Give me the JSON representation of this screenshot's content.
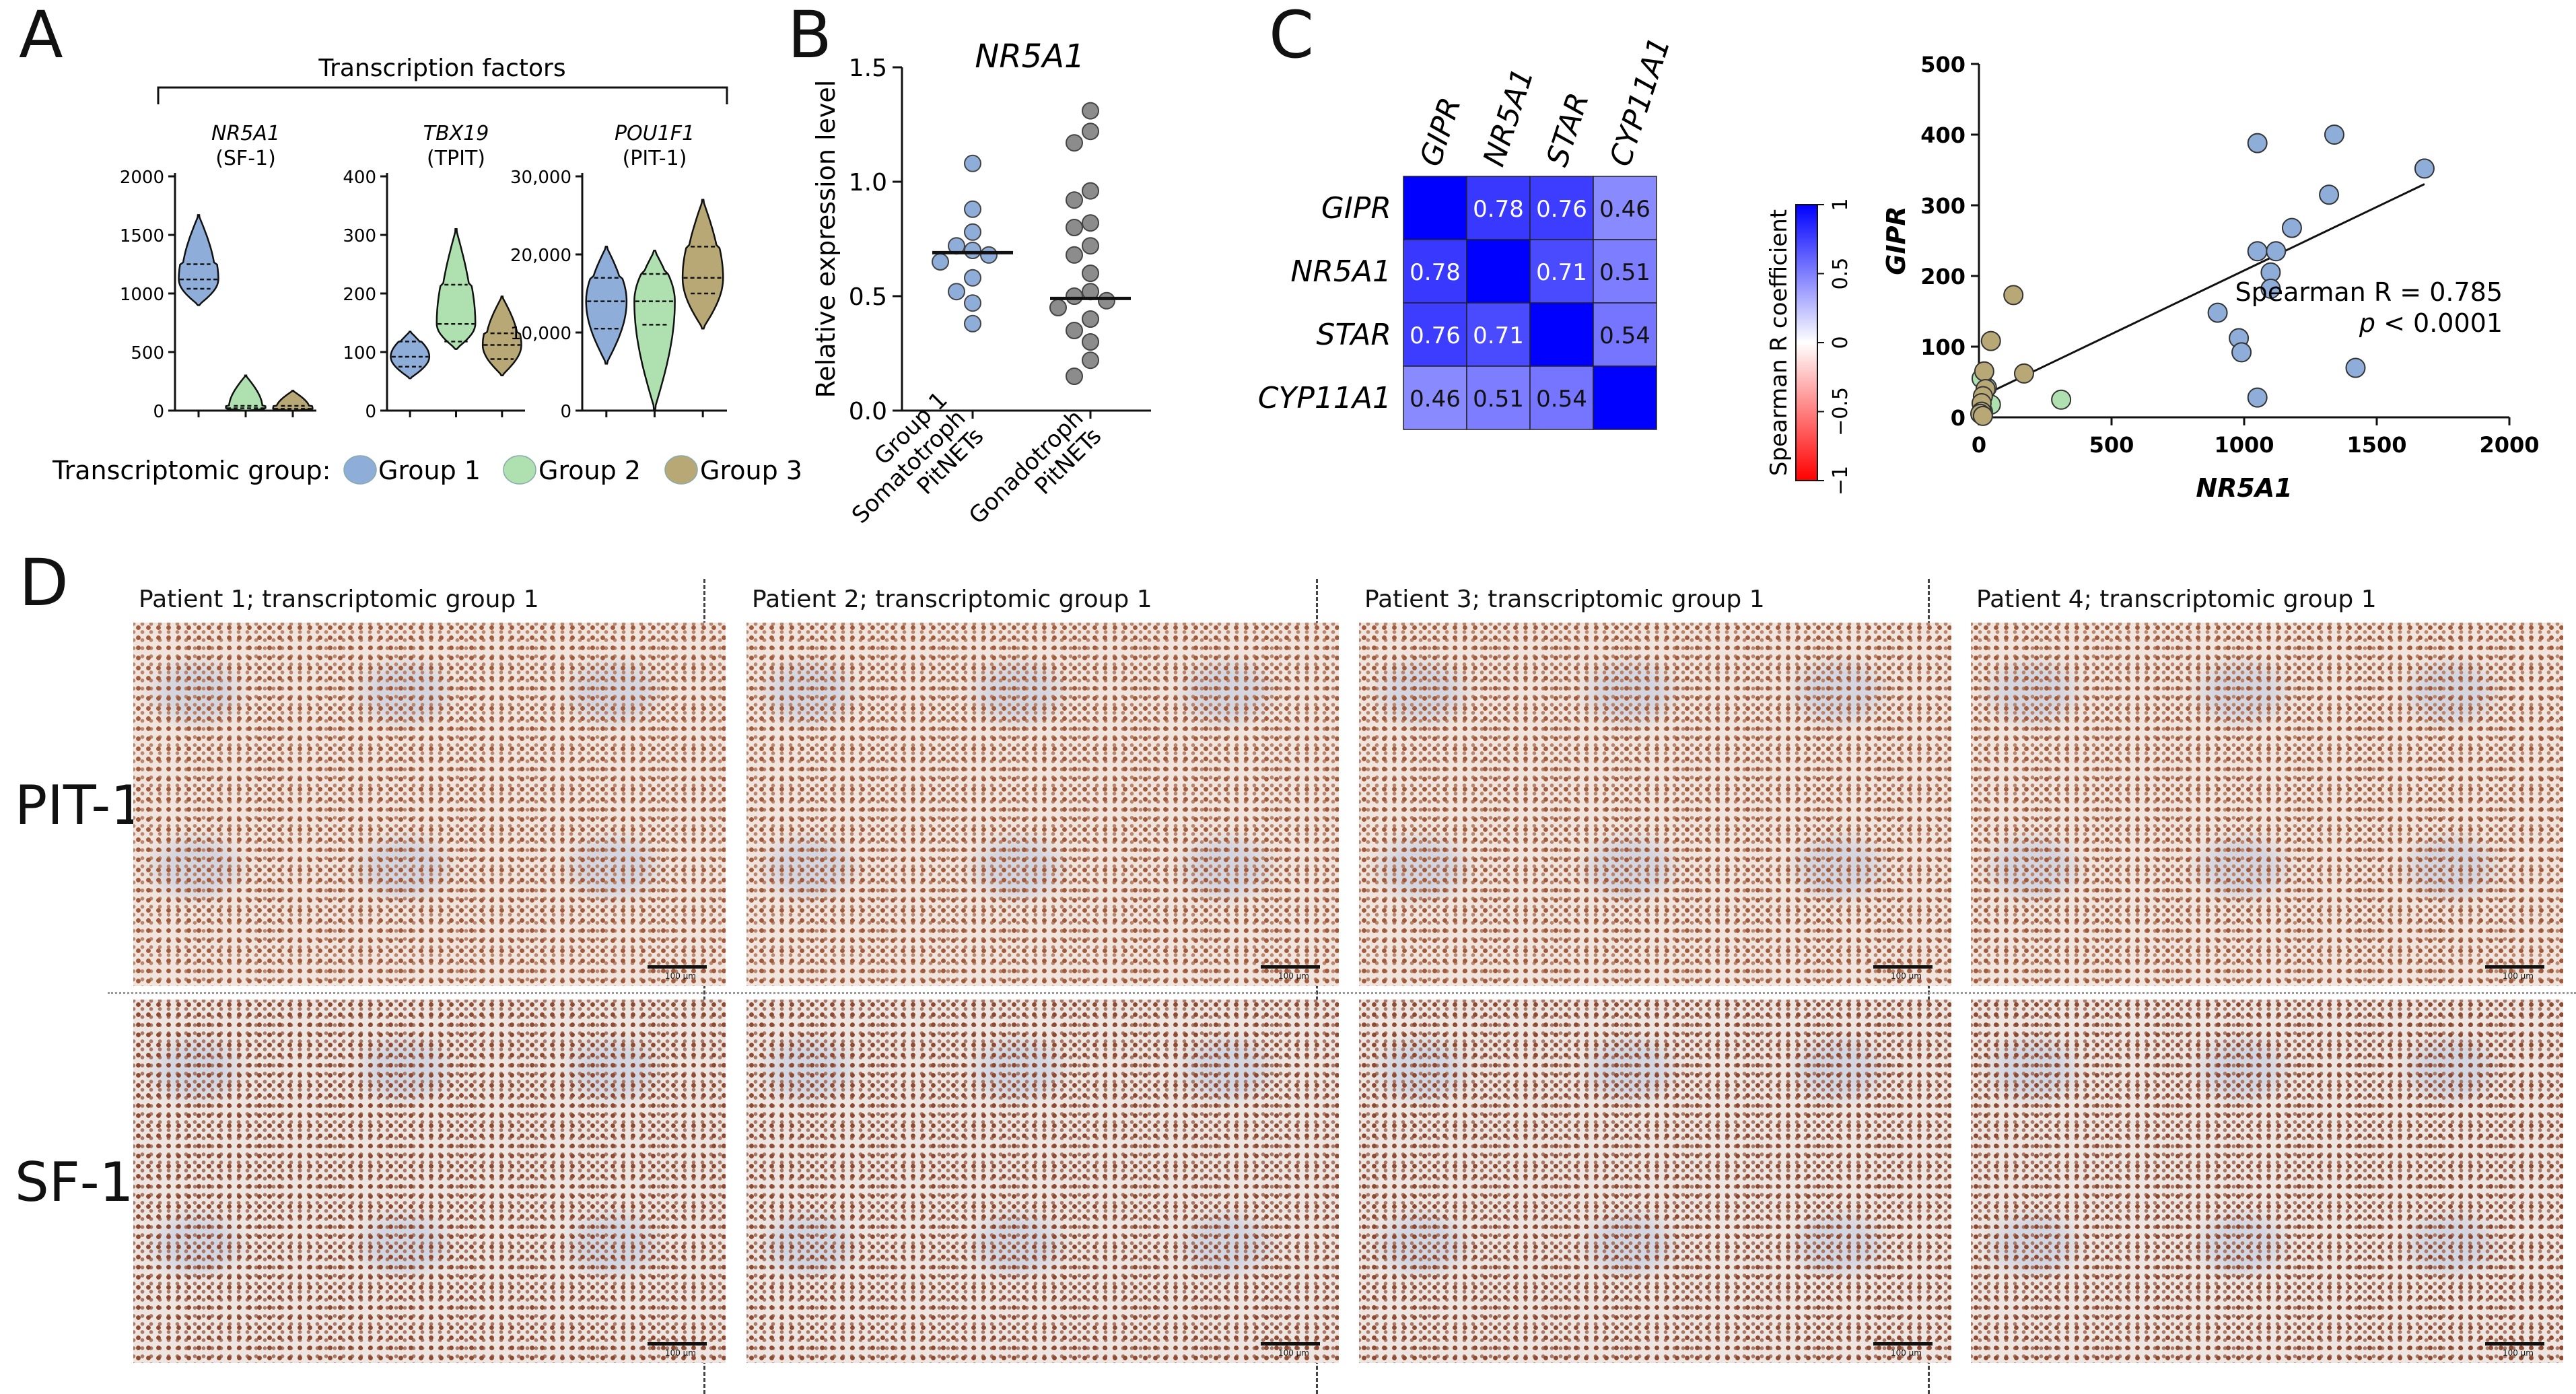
{
  "panels": {
    "a": "A",
    "b": "B",
    "c": "C",
    "d": "D"
  },
  "panelA": {
    "bracket_title": "Transcription factors",
    "legend_label": "Transcriptomic group:",
    "legend_items": [
      "Group 1",
      "Group 2",
      "Group 3"
    ],
    "colors": {
      "group1": "#8eaed9",
      "group2": "#aee0b0",
      "group3": "#b7a876"
    }
  },
  "panelC": {
    "genes": [
      "GIPR",
      "NR5A1",
      "STAR",
      "CYP11A1"
    ],
    "colorbar_label": "Spearman R coefficient",
    "colorbar_ticks": [
      "1",
      "0.5",
      "0",
      "−0.5",
      "−1"
    ]
  },
  "panelD": {
    "patients": [
      "Patient 1; transcriptomic group 1",
      "Patient 2; transcriptomic group 1",
      "Patient 3; transcriptomic group 1",
      "Patient 4; transcriptomic group 1"
    ],
    "rows": [
      "PIT-1",
      "SF-1"
    ],
    "scalebar_label": "100 µm"
  },
  "chart_data": [
    {
      "id": "A1",
      "type": "violin",
      "title": "NR5A1",
      "subtitle": "(SF-1)",
      "yticks": [
        "0",
        "500",
        "1000",
        "1500",
        "2000"
      ],
      "ylim": [
        0,
        2000
      ],
      "series": [
        {
          "name": "Group 1",
          "median": 1120,
          "q1": 1040,
          "q3": 1250,
          "min": 900,
          "max": 1670
        },
        {
          "name": "Group 2",
          "median": 20,
          "q1": 0,
          "q3": 40,
          "min": 0,
          "max": 300
        },
        {
          "name": "Group 3",
          "median": 15,
          "q1": 0,
          "q3": 40,
          "min": 0,
          "max": 170
        }
      ]
    },
    {
      "id": "A2",
      "type": "violin",
      "title": "TBX19",
      "subtitle": "(TPIT)",
      "yticks": [
        "0",
        "100",
        "200",
        "300",
        "400"
      ],
      "ylim": [
        0,
        400
      ],
      "series": [
        {
          "name": "Group 1",
          "median": 92,
          "q1": 75,
          "q3": 118,
          "min": 55,
          "max": 135
        },
        {
          "name": "Group 2",
          "median": 148,
          "q1": 118,
          "q3": 215,
          "min": 105,
          "max": 310
        },
        {
          "name": "Group 3",
          "median": 112,
          "q1": 88,
          "q3": 132,
          "min": 60,
          "max": 195
        }
      ]
    },
    {
      "id": "A3",
      "type": "violin",
      "title": "POU1F1",
      "subtitle": "(PIT-1)",
      "yticks": [
        "0",
        "10,000",
        "20,000",
        "30,000"
      ],
      "ylim": [
        0,
        30000
      ],
      "series": [
        {
          "name": "Group 1",
          "median": 14000,
          "q1": 10500,
          "q3": 17000,
          "min": 6000,
          "max": 21000
        },
        {
          "name": "Group 2",
          "median": 14000,
          "q1": 11000,
          "q3": 17500,
          "min": 200,
          "max": 20500
        },
        {
          "name": "Group 3",
          "median": 17000,
          "q1": 15000,
          "q3": 21000,
          "min": 10500,
          "max": 27000
        }
      ]
    },
    {
      "id": "B",
      "type": "scatter",
      "title": "NR5A1",
      "ylabel": "Relative expression level",
      "yticks": [
        "0.0",
        "0.5",
        "1.0",
        "1.5"
      ],
      "ylim": [
        0,
        1.5
      ],
      "categories": [
        "Group 1 Somatotroph PitNETs",
        "Gonadotroph PitNETs"
      ],
      "category_lines": [
        [
          "Group 1",
          "Somatotroph",
          "PitNETs"
        ],
        [
          "Gonadotroph",
          "PitNETs"
        ]
      ],
      "series": [
        {
          "name": "Group 1 Somatotroph PitNETs",
          "values": [
            1.08,
            0.88,
            0.78,
            0.72,
            0.7,
            0.68,
            0.65,
            0.58,
            0.52,
            0.47,
            0.38
          ],
          "median": 0.69
        },
        {
          "name": "Gonadotroph PitNETs",
          "values": [
            1.31,
            1.22,
            1.17,
            0.96,
            0.92,
            0.82,
            0.8,
            0.72,
            0.68,
            0.6,
            0.52,
            0.5,
            0.48,
            0.45,
            0.4,
            0.35,
            0.3,
            0.22,
            0.15
          ],
          "median": 0.49
        }
      ]
    },
    {
      "id": "C",
      "type": "heatmap",
      "rows": [
        "GIPR",
        "NR5A1",
        "STAR",
        "CYP11A1"
      ],
      "cols": [
        "GIPR",
        "NR5A1",
        "STAR",
        "CYP11A1"
      ],
      "values": [
        [
          1,
          0.78,
          0.76,
          0.46
        ],
        [
          0.78,
          1,
          0.71,
          0.51
        ],
        [
          0.76,
          0.71,
          1,
          0.54
        ],
        [
          0.46,
          0.51,
          0.54,
          1
        ]
      ],
      "labels": [
        [
          "",
          "0.78",
          "0.76",
          "0.46"
        ],
        [
          "0.78",
          "",
          "0.71",
          "0.51"
        ],
        [
          "0.76",
          "0.71",
          "",
          "0.54"
        ],
        [
          "0.46",
          "0.51",
          "0.54",
          ""
        ]
      ],
      "colorscale": {
        "min": -1,
        "max": 1,
        "neg": "#ff0000",
        "mid": "#ffffff",
        "pos": "#0000ff"
      }
    },
    {
      "id": "scatter",
      "type": "scatter",
      "xlabel": "NR5A1",
      "ylabel": "GIPR",
      "xlim": [
        0,
        2000
      ],
      "ylim": [
        0,
        500
      ],
      "xticks": [
        "0",
        "500",
        "1000",
        "1500",
        "2000"
      ],
      "yticks": [
        "0",
        "100",
        "200",
        "300",
        "400",
        "500"
      ],
      "annotation": {
        "line1": "Spearman R = 0.785",
        "p": "p",
        "line2": "< 0.0001"
      },
      "regression": {
        "x0": 0,
        "y0": 28,
        "x1": 1680,
        "y1": 330
      },
      "series": [
        {
          "name": "Group 1",
          "points": [
            [
              1050,
              388
            ],
            [
              1340,
              400
            ],
            [
              1680,
              352
            ],
            [
              1320,
              315
            ],
            [
              1050,
              235
            ],
            [
              1120,
              235
            ],
            [
              1180,
              268
            ],
            [
              1100,
              205
            ],
            [
              1100,
              182
            ],
            [
              900,
              148
            ],
            [
              980,
              112
            ],
            [
              990,
              92
            ],
            [
              1050,
              28
            ],
            [
              1420,
              70
            ]
          ]
        },
        {
          "name": "Group 2",
          "points": [
            [
              310,
              25
            ],
            [
              30,
              42
            ],
            [
              45,
              18
            ],
            [
              15,
              8
            ],
            [
              10,
              55
            ]
          ]
        },
        {
          "name": "Group 3",
          "points": [
            [
              130,
              173
            ],
            [
              45,
              108
            ],
            [
              170,
              62
            ],
            [
              20,
              65
            ],
            [
              25,
              40
            ],
            [
              15,
              30
            ],
            [
              10,
              20
            ],
            [
              10,
              8
            ],
            [
              5,
              5
            ],
            [
              15,
              2
            ]
          ]
        }
      ]
    }
  ]
}
